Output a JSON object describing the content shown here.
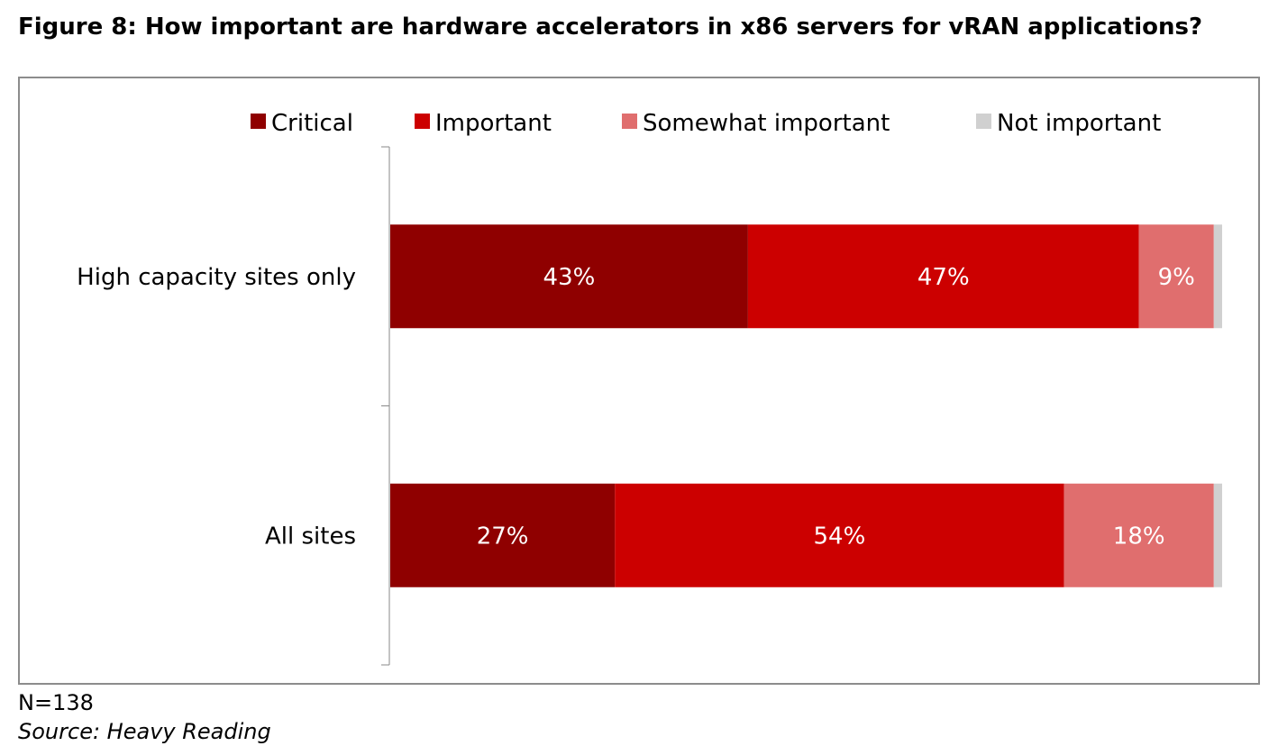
{
  "chart_data": {
    "type": "bar",
    "orientation": "horizontal",
    "stacked": true,
    "title": "Figure 8: How important are hardware accelerators in x86 servers for vRAN applications?",
    "categories": [
      "High capacity sites only",
      "All sites"
    ],
    "series": [
      {
        "name": "Critical",
        "color": "#8f0000",
        "values": [
          43,
          27
        ]
      },
      {
        "name": "Important",
        "color": "#cc0000",
        "values": [
          47,
          54
        ]
      },
      {
        "name": "Somewhat important",
        "color": "#e06e6e",
        "values": [
          9,
          18
        ]
      },
      {
        "name": "Not important",
        "color": "#d0d0d0",
        "values": [
          1,
          1
        ]
      }
    ],
    "data_labels_shown_for": [
      "Critical",
      "Important",
      "Somewhat important"
    ],
    "value_format": "percent",
    "xlim": [
      0,
      100
    ],
    "legend": "top",
    "grid": false
  },
  "footer": {
    "note": "N=138",
    "source": "Source: Heavy Reading"
  }
}
